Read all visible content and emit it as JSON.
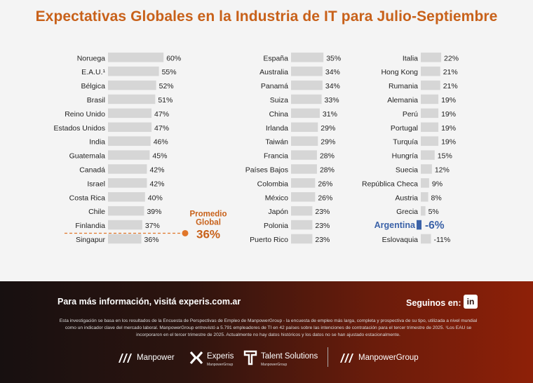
{
  "title": "Expectativas Globales en la Industria de IT para Julio-Septiembre",
  "chart_data": {
    "type": "bar",
    "title": "Expectativas Globales en la Industria de IT para Julio-Septiembre",
    "unit": "%",
    "columns": [
      [
        {
          "label": "Noruega",
          "value": 60
        },
        {
          "label": "E.A.U.¹",
          "value": 55
        },
        {
          "label": "Bélgica",
          "value": 52
        },
        {
          "label": "Brasil",
          "value": 51
        },
        {
          "label": "Reino Unido",
          "value": 47
        },
        {
          "label": "Estados Unidos",
          "value": 47
        },
        {
          "label": "India",
          "value": 46
        },
        {
          "label": "Guatemala",
          "value": 45
        },
        {
          "label": "Canadá",
          "value": 42
        },
        {
          "label": "Israel",
          "value": 42
        },
        {
          "label": "Costa Rica",
          "value": 40
        },
        {
          "label": "Chile",
          "value": 39
        },
        {
          "label": "Finlandia",
          "value": 37
        },
        {
          "label": "Singapur",
          "value": 36
        }
      ],
      [
        {
          "label": "España",
          "value": 35
        },
        {
          "label": "Australia",
          "value": 34
        },
        {
          "label": "Panamá",
          "value": 34
        },
        {
          "label": "Suiza",
          "value": 33
        },
        {
          "label": "China",
          "value": 31
        },
        {
          "label": "Irlanda",
          "value": 29
        },
        {
          "label": "Taiwán",
          "value": 29
        },
        {
          "label": "Francia",
          "value": 28
        },
        {
          "label": "Países Bajos",
          "value": 28
        },
        {
          "label": "Colombia",
          "value": 26
        },
        {
          "label": "México",
          "value": 26
        },
        {
          "label": "Japón",
          "value": 23
        },
        {
          "label": "Polonia",
          "value": 23
        },
        {
          "label": "Puerto Rico",
          "value": 23
        }
      ],
      [
        {
          "label": "Italia",
          "value": 22
        },
        {
          "label": "Hong Kong",
          "value": 21
        },
        {
          "label": "Rumania",
          "value": 21
        },
        {
          "label": "Alemania",
          "value": 19
        },
        {
          "label": "Perú",
          "value": 19
        },
        {
          "label": "Portugal",
          "value": 19
        },
        {
          "label": "Turquía",
          "value": 19
        },
        {
          "label": "Hungría",
          "value": 15
        },
        {
          "label": "Suecia",
          "value": 12
        },
        {
          "label": "República Checa",
          "value": 9
        },
        {
          "label": "Austria",
          "value": 8
        },
        {
          "label": "Grecia",
          "value": 5
        },
        {
          "label": "Argentina",
          "value": -6,
          "highlight": true
        },
        {
          "label": "Eslovaquia",
          "value": -11
        }
      ]
    ],
    "value_labels": [
      [
        "60%",
        "55%",
        "52%",
        "51%",
        "47%",
        "47%",
        "46%",
        "45%",
        "42%",
        "42%",
        "40%",
        "39%",
        "37%",
        "36%"
      ],
      [
        "35%",
        "34%",
        "34%",
        "33%",
        "31%",
        "29%",
        "29%",
        "28%",
        "28%",
        "26%",
        "26%",
        "23%",
        "23%",
        "23%"
      ],
      [
        "22%",
        "21%",
        "21%",
        "19%",
        "19%",
        "19%",
        "19%",
        "15%",
        "12%",
        "9%",
        "8%",
        "5%",
        "-6%",
        "-11%"
      ]
    ],
    "global_average": {
      "label_line1": "Promedio",
      "label_line2": "Global",
      "value": 36,
      "value_text": "36%"
    },
    "colors": {
      "bar": "#d6d6d6",
      "highlight": "#3b62a8",
      "accent": "#e0762a",
      "accent_text": "#c8611a"
    }
  },
  "footer": {
    "info_prefix": "Para más información, visitá ",
    "info_link": "experis.com.ar",
    "follow": "Seguinos en:",
    "linkedin_icon": "in",
    "disclaimer": "Esta investigación se basa en los resultados de la Encuesta de Perspectivas de Empleo de ManpowerGroup - la encuesta de empleo más larga, completa y prospectiva de su tipo, utilizada a nivel mundial como un indicador clave del mercado laboral. ManpowerGroup entrevistó a 5.791 empleadores de TI en 42 países sobre las intenciones de contratación para el tercer trimestre de 2025. ¹Los EAU se incorporaron en el tercer trimestre de 2025. Actualmente no hay datos históricos y los datos no se han ajustado estacionalmente.",
    "brands": {
      "manpower": "Manpower",
      "experis": "Experis",
      "experis_sub": "ManpowerGroup",
      "talent": "Talent Solutions",
      "talent_sub": "ManpowerGroup",
      "mpg": "ManpowerGroup"
    }
  }
}
